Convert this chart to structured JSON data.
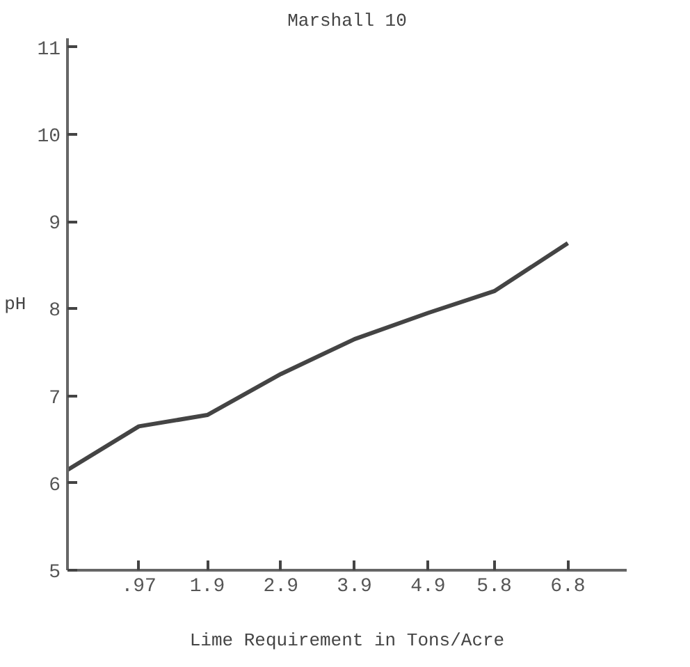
{
  "chart_data": {
    "type": "line",
    "title": "Marshall 10",
    "xlabel": "Lime Requirement in Tons/Acre",
    "ylabel": "pH",
    "x": [
      0,
      0.97,
      1.9,
      2.9,
      3.9,
      4.9,
      5.8,
      6.8
    ],
    "series": [
      {
        "color": "#444444",
        "values": [
          6.15,
          6.65,
          6.78,
          7.25,
          7.65,
          7.95,
          8.2,
          8.75
        ]
      }
    ],
    "xlim": [
      0,
      7.6
    ],
    "ylim": [
      5,
      11.1
    ],
    "xticks": [
      {
        "value": 0.97,
        "label": ".97"
      },
      1.9,
      2.9,
      3.9,
      4.9,
      5.8,
      6.8
    ],
    "yticks": [
      5,
      6,
      7,
      8,
      9,
      10,
      11
    ],
    "grid": false,
    "marker": "none",
    "line_style": "solid"
  }
}
